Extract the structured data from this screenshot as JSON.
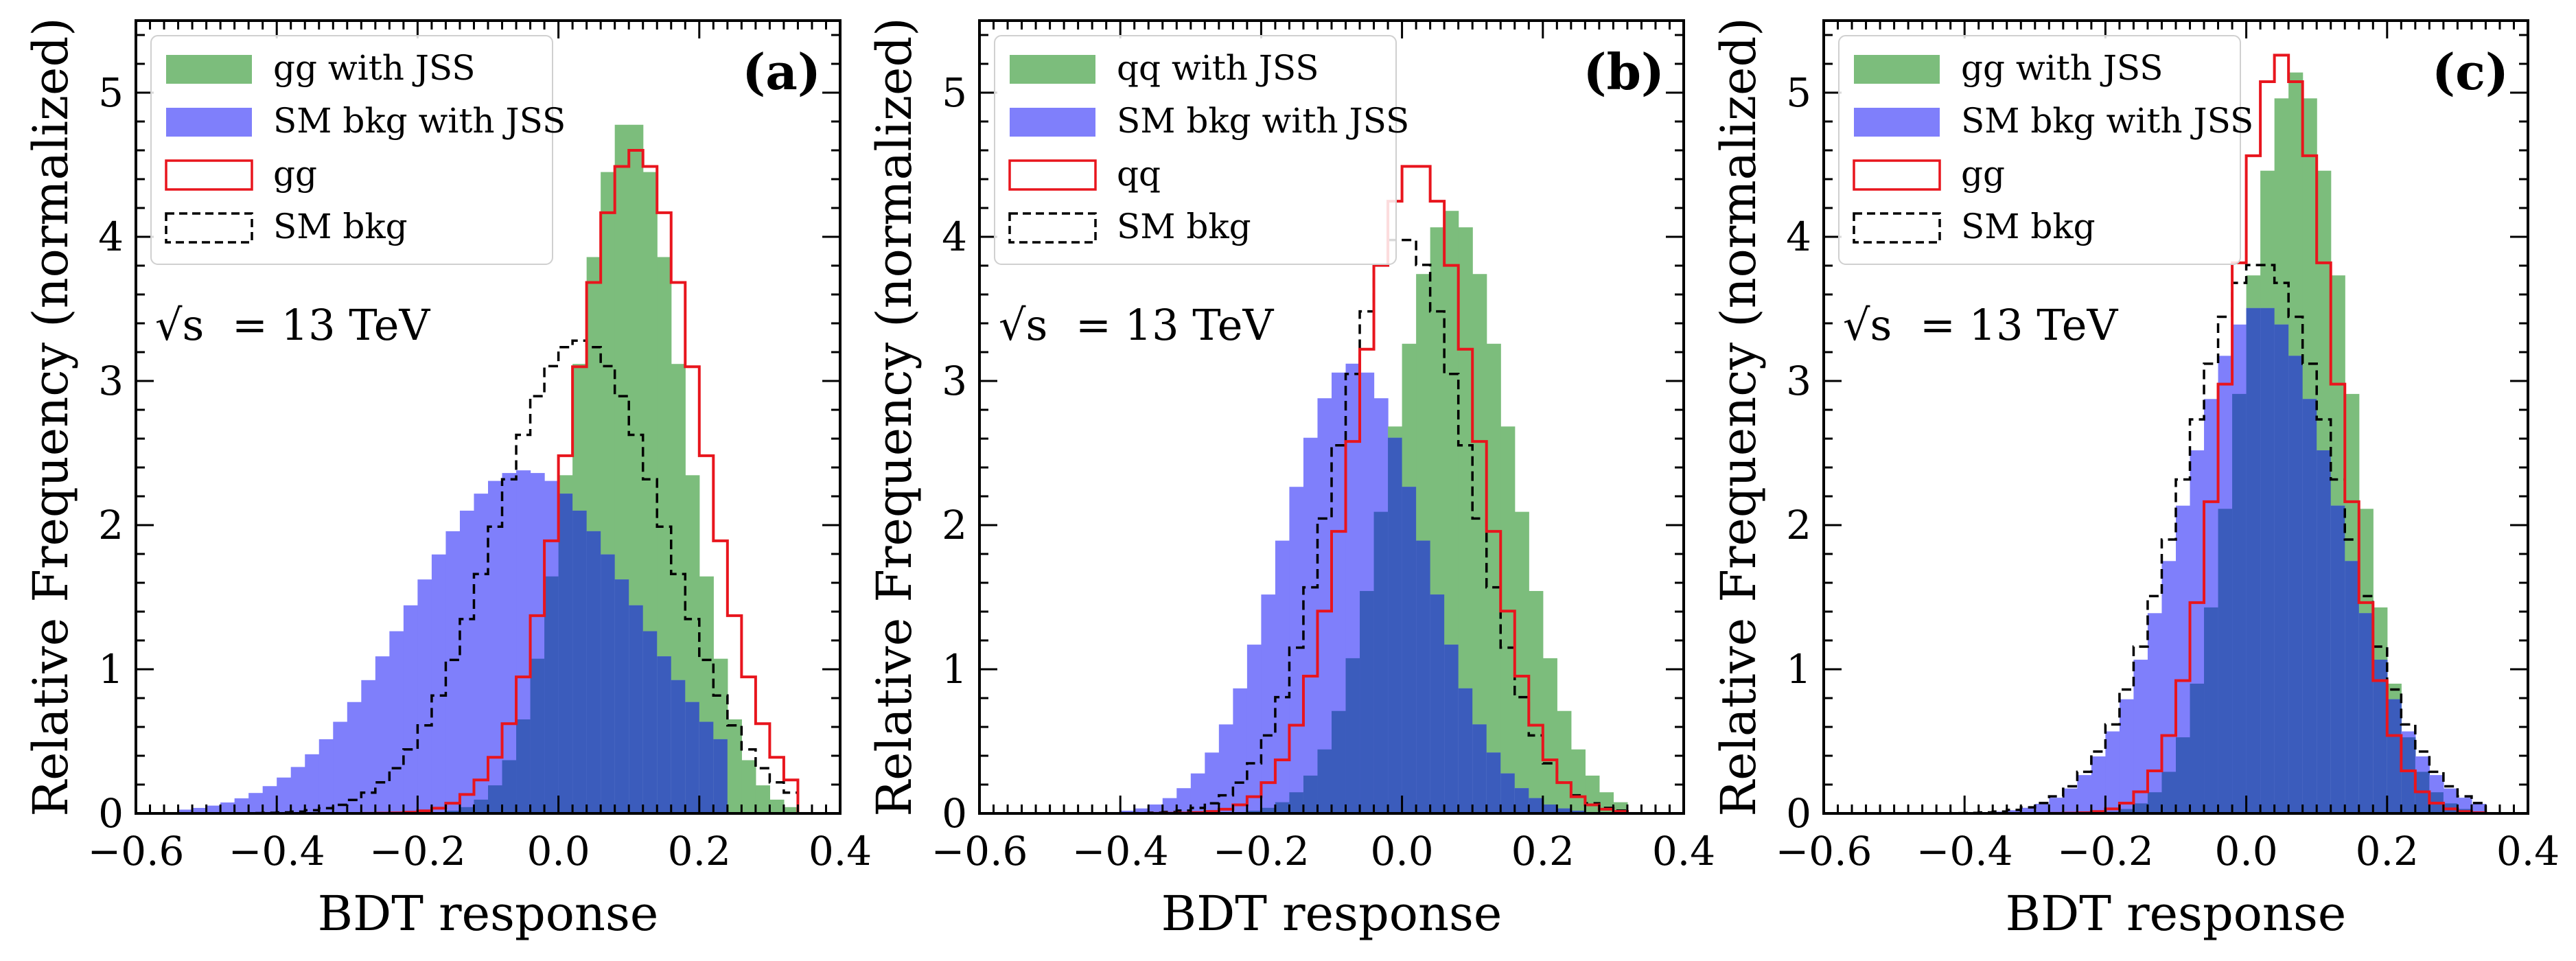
{
  "colors": {
    "sig_fill": "#7cbd7c",
    "bkg_fill": "#7f7ffb",
    "overlap_fill": "#3b5cbc",
    "sig_line": "#e8151d",
    "bkg_line": "#000000"
  },
  "shared": {
    "xlabel": "BDT response",
    "ylabel": "Relative Frequency (normalized)",
    "energy_label": "= 13 TeV",
    "energy_symbol": "√s",
    "xlim": [
      -0.6,
      0.4
    ],
    "ylim": [
      0,
      5.5
    ],
    "xticks": [
      -0.6,
      -0.4,
      -0.2,
      0.0,
      0.2,
      0.4
    ],
    "xtick_labels": [
      "−0.6",
      "−0.4",
      "−0.2",
      "0.0",
      "0.2",
      "0.4"
    ],
    "yticks": [
      0,
      1,
      2,
      3,
      4,
      5
    ],
    "ytick_labels": [
      "0",
      "1",
      "2",
      "3",
      "4",
      "5"
    ],
    "bin_width": 0.02
  },
  "chart_data": [
    {
      "type": "histogram",
      "panel": "(a)",
      "legend": [
        "gg with JSS",
        "SM bkg with JSS",
        "gg",
        "SM bkg"
      ],
      "peaks": {
        "sig_jss": {
          "mu": 0.1,
          "sigma": 0.075,
          "peak": 4.82
        },
        "bkg_jss": {
          "mu": -0.05,
          "sigma": 0.16,
          "peak": 2.38,
          "lo": -0.54,
          "hi": 0.22
        },
        "sig_nojss": {
          "mu": 0.11,
          "sigma": 0.09,
          "peak": 4.6
        },
        "bkg_nojss": {
          "mu": 0.03,
          "sigma": 0.12,
          "peak": 3.28
        }
      },
      "range": [
        -0.58,
        0.34
      ]
    },
    {
      "type": "histogram",
      "panel": "(b)",
      "legend": [
        "qq with JSS",
        "SM bkg with JSS",
        "qq",
        "SM bkg"
      ],
      "peaks": {
        "sig_jss": {
          "mu": 0.07,
          "sigma": 0.085,
          "peak": 4.18
        },
        "bkg_jss": {
          "mu": -0.07,
          "sigma": 0.1,
          "peak": 3.12
        },
        "sig_nojss": {
          "mu": 0.02,
          "sigma": 0.085,
          "peak": 4.52
        },
        "bkg_nojss": {
          "mu": 0.0,
          "sigma": 0.095,
          "peak": 4.0
        }
      },
      "range": [
        -0.58,
        0.32
      ]
    },
    {
      "type": "histogram",
      "panel": "(c)",
      "legend": [
        "gg with JSS",
        "SM bkg with JSS",
        "gg",
        "SM bkg"
      ],
      "peaks": {
        "sig_jss": {
          "mu": 0.07,
          "sigma": 0.075,
          "peak": 5.14
        },
        "bkg_jss": {
          "mu": 0.02,
          "sigma": 0.11,
          "peak": 3.52
        },
        "sig_nojss": {
          "mu": 0.05,
          "sigma": 0.075,
          "peak": 5.26
        },
        "bkg_nojss": {
          "mu": 0.02,
          "sigma": 0.11,
          "peak": 3.82
        }
      },
      "range": [
        -0.58,
        0.34
      ]
    }
  ]
}
